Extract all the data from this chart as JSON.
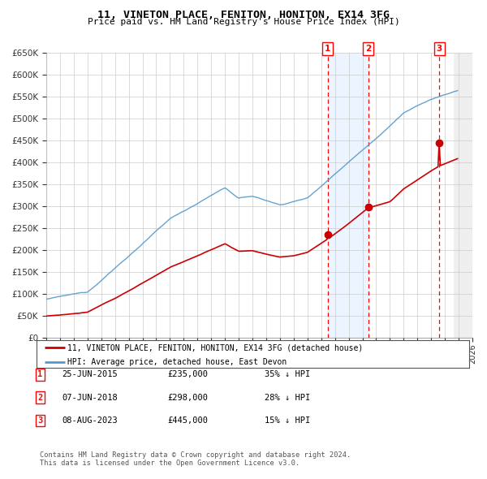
{
  "title": "11, VINETON PLACE, FENITON, HONITON, EX14 3FG",
  "subtitle": "Price paid vs. HM Land Registry's House Price Index (HPI)",
  "ylabel_ticks": [
    "£0",
    "£50K",
    "£100K",
    "£150K",
    "£200K",
    "£250K",
    "£300K",
    "£350K",
    "£400K",
    "£450K",
    "£500K",
    "£550K",
    "£600K",
    "£650K"
  ],
  "ytick_values": [
    0,
    50000,
    100000,
    150000,
    200000,
    250000,
    300000,
    350000,
    400000,
    450000,
    500000,
    550000,
    600000,
    650000
  ],
  "xmin": 1995.0,
  "xmax": 2026.0,
  "ymin": 0,
  "ymax": 650000,
  "purchases": [
    {
      "date_num": 2015.48,
      "price": 235000,
      "label": "1"
    },
    {
      "date_num": 2018.43,
      "price": 298000,
      "label": "2"
    },
    {
      "date_num": 2023.6,
      "price": 445000,
      "label": "3"
    }
  ],
  "table_rows": [
    {
      "num": "1",
      "date": "25-JUN-2015",
      "price": "£235,000",
      "pct": "35% ↓ HPI"
    },
    {
      "num": "2",
      "date": "07-JUN-2018",
      "price": "£298,000",
      "pct": "28% ↓ HPI"
    },
    {
      "num": "3",
      "date": "08-AUG-2023",
      "price": "£445,000",
      "pct": "15% ↓ HPI"
    }
  ],
  "legend_entries": [
    {
      "label": "11, VINETON PLACE, FENITON, HONITON, EX14 3FG (detached house)",
      "color": "#cc0000"
    },
    {
      "label": "HPI: Average price, detached house, East Devon",
      "color": "#5599cc"
    }
  ],
  "footer": "Contains HM Land Registry data © Crown copyright and database right 2024.\nThis data is licensed under the Open Government Licence v3.0.",
  "hpi_color": "#5599cc",
  "price_color": "#cc0000",
  "grid_color": "#cccccc",
  "bg_color": "#ffffff",
  "shade_color": "#ddeeff",
  "dashed_color": "#ff0000"
}
